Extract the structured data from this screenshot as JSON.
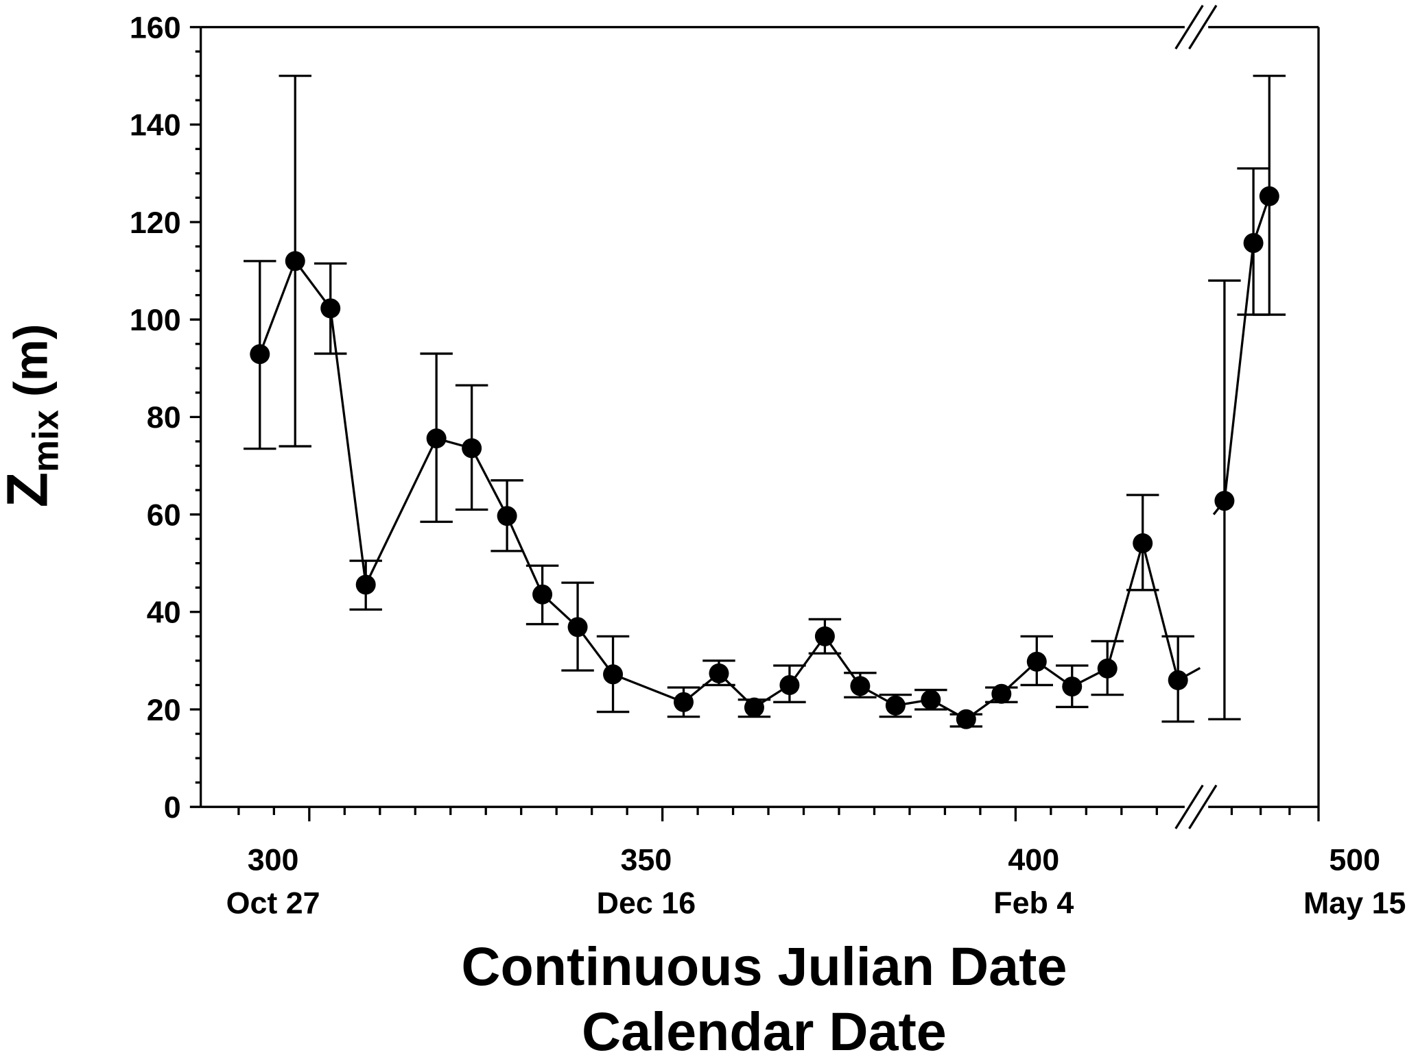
{
  "chart_data": {
    "type": "scatter",
    "title": "",
    "xlabel": "Continuous Julian Date",
    "xlabel2": "Calendar Date",
    "ylabel_main": "Z",
    "ylabel_sub": "mix",
    "ylabel_unit": " (m)",
    "ylim": [
      0,
      160
    ],
    "xlim_segments": [
      [
        290,
        425
      ],
      [
        460,
        500
      ]
    ],
    "axis_break": true,
    "grid": false,
    "y_ticks": [
      "0",
      "20",
      "40",
      "60",
      "80",
      "100",
      "120",
      "140",
      "160"
    ],
    "x_ticks": [
      {
        "value": 300,
        "label": "300",
        "date": "Oct 27"
      },
      {
        "value": 350,
        "label": "350",
        "date": "Dec 16"
      },
      {
        "value": 400,
        "label": "400",
        "date": "Feb 4"
      },
      {
        "value": 500,
        "label": "500",
        "date": "May 15"
      }
    ],
    "series": [
      {
        "name": "Zmix",
        "color": "#000000",
        "points": [
          {
            "x": 293,
            "y": 92.9,
            "lo": 73.5,
            "hi": 112
          },
          {
            "x": 298,
            "y": 112,
            "lo": 74,
            "hi": 150
          },
          {
            "x": 303,
            "y": 102.3,
            "lo": 93,
            "hi": 111.5
          },
          {
            "x": 308,
            "y": 45.6,
            "lo": 40.5,
            "hi": 50.5
          },
          {
            "x": 318,
            "y": 75.6,
            "lo": 58.5,
            "hi": 93
          },
          {
            "x": 323,
            "y": 73.6,
            "lo": 61,
            "hi": 86.5
          },
          {
            "x": 328,
            "y": 59.7,
            "lo": 52.5,
            "hi": 67
          },
          {
            "x": 333,
            "y": 43.6,
            "lo": 37.5,
            "hi": 49.5
          },
          {
            "x": 338,
            "y": 36.9,
            "lo": 28,
            "hi": 46
          },
          {
            "x": 343,
            "y": 27.2,
            "lo": 19.5,
            "hi": 35
          },
          {
            "x": 353,
            "y": 21.5,
            "lo": 18.5,
            "hi": 24.5
          },
          {
            "x": 358,
            "y": 27.4,
            "lo": 25,
            "hi": 30
          },
          {
            "x": 363,
            "y": 20.4,
            "lo": 18.5,
            "hi": 22
          },
          {
            "x": 368,
            "y": 25,
            "lo": 21.5,
            "hi": 29
          },
          {
            "x": 373,
            "y": 35,
            "lo": 31.5,
            "hi": 38.5
          },
          {
            "x": 378,
            "y": 24.8,
            "lo": 22.5,
            "hi": 27.5
          },
          {
            "x": 383,
            "y": 20.8,
            "lo": 18.5,
            "hi": 23
          },
          {
            "x": 388,
            "y": 22,
            "lo": 20,
            "hi": 24
          },
          {
            "x": 393,
            "y": 18,
            "lo": 16.5,
            "hi": 19
          },
          {
            "x": 398,
            "y": 23.2,
            "lo": 21.5,
            "hi": 24.5
          },
          {
            "x": 403,
            "y": 29.8,
            "lo": 25,
            "hi": 35
          },
          {
            "x": 408,
            "y": 24.7,
            "lo": 20.5,
            "hi": 29
          },
          {
            "x": 413,
            "y": 28.4,
            "lo": 23,
            "hi": 34
          },
          {
            "x": 418,
            "y": 54.1,
            "lo": 44.5,
            "hi": 64
          },
          {
            "x": 423,
            "y": 26,
            "lo": 17.5,
            "hi": 35
          },
          {
            "x": 467.5,
            "y": 62.8,
            "lo": 18,
            "hi": 108
          },
          {
            "x": 477.5,
            "y": 115.7,
            "lo": 101,
            "hi": 131
          },
          {
            "x": 483,
            "y": 125.3,
            "lo": 101,
            "hi": 150
          }
        ]
      }
    ]
  }
}
